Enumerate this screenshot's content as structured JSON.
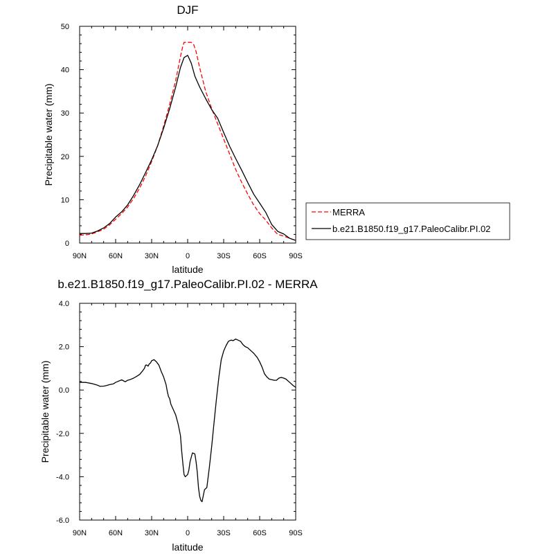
{
  "chart_data": [
    {
      "type": "line",
      "title": "DJF",
      "xlabel": "latitude",
      "ylabel": "Precipitable water (mm)",
      "xlim": [
        90,
        -90
      ],
      "ylim": [
        0,
        50
      ],
      "x_ticks": [
        90,
        60,
        30,
        0,
        -30,
        -60,
        -90
      ],
      "x_tick_labels": [
        "90N",
        "60N",
        "30N",
        "0",
        "30S",
        "60S",
        "90S"
      ],
      "y_ticks": [
        0,
        10,
        20,
        30,
        40,
        50
      ],
      "y_tick_labels": [
        "0",
        "10",
        "20",
        "30",
        "40",
        "50"
      ],
      "legend": {
        "placement": "right-outside-bottom"
      },
      "series": [
        {
          "name": "MERRA",
          "color": "#ff0000",
          "dash": "dashed",
          "x": [
            90,
            85,
            80,
            75,
            70,
            65,
            60,
            55,
            50,
            45,
            40,
            35,
            30,
            25,
            20,
            15,
            10,
            6,
            4,
            3,
            0,
            -3,
            -5,
            -7,
            -10,
            -15,
            -20,
            -25,
            -30,
            -35,
            -40,
            -45,
            -50,
            -55,
            -60,
            -65,
            -70,
            -75,
            -80,
            -85,
            -90
          ],
          "y": [
            1.8,
            1.9,
            2.1,
            2.6,
            3.2,
            4.2,
            5.5,
            6.8,
            8.3,
            10.3,
            12.7,
            15.5,
            18.8,
            22.5,
            27.0,
            32.0,
            37.5,
            43.0,
            45.5,
            46.3,
            46.3,
            46.3,
            45.8,
            44.2,
            40.5,
            35.0,
            31.0,
            27.5,
            24.0,
            20.5,
            17.0,
            14.0,
            11.3,
            8.8,
            6.8,
            5.3,
            3.5,
            2.0,
            1.6,
            1.1,
            0.6
          ]
        },
        {
          "name": "b.e21.B1850.f19_g17.PaleoCalibr.PI.02",
          "color": "#000000",
          "dash": "solid",
          "x": [
            90,
            85,
            80,
            75,
            70,
            65,
            60,
            55,
            50,
            45,
            40,
            35,
            30,
            25,
            20,
            15,
            10,
            6,
            3,
            0,
            -3,
            -6,
            -10,
            -15,
            -20,
            -25,
            -30,
            -35,
            -40,
            -45,
            -50,
            -55,
            -60,
            -65,
            -70,
            -75,
            -80,
            -85,
            -90
          ],
          "y": [
            2.2,
            2.2,
            2.3,
            2.8,
            3.5,
            4.5,
            6.0,
            7.2,
            8.8,
            11.0,
            13.5,
            16.3,
            19.2,
            22.5,
            26.5,
            31.0,
            36.0,
            40.5,
            42.8,
            43.3,
            41.5,
            38.5,
            36.0,
            33.3,
            30.8,
            28.8,
            25.5,
            22.3,
            19.5,
            16.8,
            14.0,
            11.3,
            9.2,
            7.1,
            4.3,
            2.7,
            2.1,
            1.1,
            0.6
          ]
        }
      ]
    },
    {
      "type": "line",
      "title": "b.e21.B1850.f19_g17.PaleoCalibr.PI.02 - MERRA",
      "xlabel": "latitude",
      "ylabel": "Precipitable water (mm)",
      "xlim": [
        90,
        -90
      ],
      "ylim": [
        -6,
        4
      ],
      "x_ticks": [
        90,
        60,
        30,
        0,
        -30,
        -60,
        -90
      ],
      "x_tick_labels": [
        "90N",
        "60N",
        "30N",
        "0",
        "30S",
        "60S",
        "90S"
      ],
      "y_ticks": [
        -6,
        -4,
        -2,
        0,
        2,
        4
      ],
      "y_tick_labels": [
        "-6.0",
        "-4.0",
        "-2.0",
        "0.0",
        "2.0",
        "4.0"
      ],
      "series": [
        {
          "color": "#000000",
          "dash": "solid",
          "x": [
            90,
            85,
            80,
            75,
            73,
            70,
            68,
            65,
            62,
            60,
            58,
            55,
            52,
            50,
            48,
            45,
            42,
            40,
            38,
            36,
            35,
            34,
            33,
            32,
            31,
            30,
            28,
            26,
            24,
            22,
            20,
            18,
            17,
            16,
            15,
            14,
            12,
            10,
            8,
            6,
            5,
            4,
            3,
            2,
            1,
            0,
            -1,
            -2,
            -4,
            -6,
            -7,
            -8,
            -9,
            -10,
            -11,
            -12,
            -14,
            -16,
            -18,
            -20,
            -22,
            -24,
            -26,
            -28,
            -30,
            -32,
            -34,
            -36,
            -38,
            -40,
            -42,
            -44,
            -46,
            -48,
            -50,
            -52,
            -55,
            -58,
            -60,
            -62,
            -64,
            -66,
            -68,
            -70,
            -72,
            -74,
            -76,
            -78,
            -80,
            -82,
            -84,
            -86,
            -88,
            -90
          ],
          "y": [
            0.35,
            0.35,
            0.3,
            0.22,
            0.17,
            0.18,
            0.2,
            0.25,
            0.28,
            0.35,
            0.4,
            0.47,
            0.38,
            0.45,
            0.48,
            0.55,
            0.65,
            0.72,
            0.85,
            1.0,
            1.15,
            1.15,
            1.1,
            1.2,
            1.25,
            1.35,
            1.4,
            1.3,
            1.15,
            0.85,
            0.6,
            0.25,
            -0.05,
            -0.3,
            -0.4,
            -0.65,
            -0.9,
            -1.15,
            -1.55,
            -2.1,
            -2.8,
            -3.4,
            -3.9,
            -4.0,
            -3.95,
            -3.9,
            -3.7,
            -3.3,
            -2.9,
            -2.95,
            -3.3,
            -3.8,
            -4.5,
            -4.9,
            -5.1,
            -5.15,
            -4.6,
            -4.5,
            -3.6,
            -2.6,
            -1.5,
            -0.4,
            0.6,
            1.4,
            1.8,
            2.05,
            2.25,
            2.3,
            2.28,
            2.35,
            2.3,
            2.25,
            2.1,
            2.0,
            1.95,
            1.85,
            1.7,
            1.5,
            1.3,
            1.05,
            0.75,
            0.6,
            0.5,
            0.48,
            0.45,
            0.45,
            0.55,
            0.58,
            0.55,
            0.5,
            0.4,
            0.3,
            0.2,
            0.12
          ]
        }
      ]
    }
  ]
}
